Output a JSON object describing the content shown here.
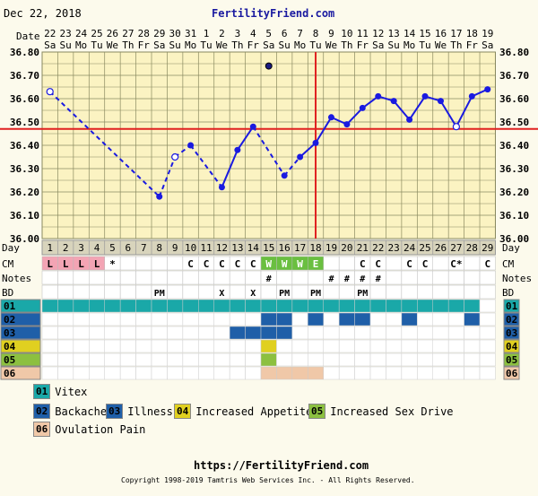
{
  "header": {
    "date": "Dec 22, 2018",
    "site": "FertilityFriend.com"
  },
  "footer": {
    "url": "https://FertilityFriend.com",
    "copyright": "Copyright 1998-2019 Tamtris Web Services Inc. - All Rights Reserved."
  },
  "row_labels": {
    "date": "Date",
    "day": "Day",
    "cm": "CM",
    "notes": "Notes",
    "bd": "BD"
  },
  "colors": {
    "temp": "#1a1ae0",
    "coverline": "#e02020",
    "grid": "#8a8a60",
    "plot_bg": "#fbf3c2"
  },
  "chart_data": {
    "type": "line",
    "dates": [
      "22",
      "23",
      "24",
      "25",
      "26",
      "27",
      "28",
      "29",
      "30",
      "31",
      "1",
      "2",
      "3",
      "4",
      "5",
      "6",
      "7",
      "8",
      "9",
      "10",
      "11",
      "12",
      "13",
      "14",
      "15",
      "16",
      "17",
      "18",
      "19"
    ],
    "weekdays": [
      "Sa",
      "Su",
      "Mo",
      "Tu",
      "We",
      "Th",
      "Fr",
      "Sa",
      "Su",
      "Mo",
      "Tu",
      "We",
      "Th",
      "Fr",
      "Sa",
      "Su",
      "Mo",
      "Tu",
      "We",
      "Th",
      "Fr",
      "Sa",
      "Su",
      "Mo",
      "Tu",
      "We",
      "Th",
      "Fr",
      "Sa"
    ],
    "days": [
      1,
      2,
      3,
      4,
      5,
      6,
      7,
      8,
      9,
      10,
      11,
      12,
      13,
      14,
      15,
      16,
      17,
      18,
      19,
      20,
      21,
      22,
      23,
      24,
      25,
      26,
      27,
      28,
      29
    ],
    "yticks": [
      "36.00",
      "36.10",
      "36.20",
      "36.30",
      "36.40",
      "36.50",
      "36.60",
      "36.70",
      "36.80"
    ],
    "ylim": [
      36.0,
      36.8
    ],
    "temps": [
      36.63,
      null,
      null,
      null,
      null,
      null,
      null,
      36.18,
      36.35,
      36.4,
      null,
      36.22,
      36.38,
      36.48,
      36.74,
      36.27,
      36.35,
      36.41,
      36.52,
      36.49,
      36.56,
      36.61,
      36.59,
      36.51,
      36.61,
      36.59,
      36.48,
      36.61,
      36.64
    ],
    "open_points": [
      1,
      9,
      27
    ],
    "discarded_points": [
      15
    ],
    "dashed_segments": [
      [
        1,
        8
      ],
      [
        8,
        9
      ],
      [
        9,
        10
      ],
      [
        15,
        16
      ],
      [
        16,
        17
      ]
    ],
    "coverline": 36.47,
    "ovulation_day": 18,
    "menstruation": [
      "L",
      "L",
      "L",
      "L",
      "*",
      "",
      "",
      "",
      "",
      "",
      "",
      "",
      "",
      "",
      "",
      "",
      "",
      "",
      "",
      "",
      "",
      "",
      "",
      "",
      "",
      "",
      "",
      "",
      ""
    ],
    "cm": [
      "",
      "",
      "",
      "",
      "",
      "",
      "",
      "",
      "",
      "C",
      "C",
      "C",
      "C",
      "C",
      "W",
      "W",
      "W",
      "E",
      "",
      "",
      "C",
      "C",
      "",
      "C",
      "C",
      "",
      "C*",
      "",
      "C"
    ],
    "notes": [
      "",
      "",
      "",
      "",
      "",
      "",
      "",
      "",
      "",
      "",
      "",
      "",
      "",
      "",
      "#",
      "",
      "",
      "",
      "#",
      "#",
      "#",
      "#",
      "",
      "",
      "",
      "",
      "",
      "",
      ""
    ],
    "bd": [
      "",
      "",
      "",
      "",
      "",
      "",
      "",
      "PM",
      "",
      "",
      "",
      "X",
      "",
      "X",
      "",
      "PM",
      "",
      "PM",
      "",
      "",
      "PM",
      "",
      "",
      "",
      "",
      "",
      "",
      "",
      ""
    ],
    "symptom_rows": [
      {
        "code": "01",
        "color": "#1aa8a8",
        "days": [
          1,
          2,
          3,
          4,
          5,
          6,
          7,
          8,
          9,
          10,
          11,
          12,
          13,
          14,
          15,
          16,
          17,
          18,
          19,
          20,
          21,
          22,
          23,
          24,
          25,
          26,
          27,
          28
        ]
      },
      {
        "code": "02",
        "color": "#1f5fa8",
        "days": [
          15,
          16,
          18,
          20,
          21,
          24,
          28
        ]
      },
      {
        "code": "03",
        "color": "#1f5fa8",
        "days": [
          13,
          14,
          15,
          16
        ]
      },
      {
        "code": "04",
        "color": "#e0d020",
        "days": [
          15
        ]
      },
      {
        "code": "05",
        "color": "#8cc040",
        "days": [
          15
        ]
      },
      {
        "code": "06",
        "color": "#f0c8a8",
        "days": [
          15,
          16,
          17,
          18
        ]
      }
    ]
  },
  "legend": [
    {
      "code": "01",
      "label": "Vitex",
      "color": "#1aa8a8",
      "text_color": "#000"
    },
    {
      "code": "02",
      "label": "Backache",
      "color": "#1f5fa8",
      "text_color": "#000"
    },
    {
      "code": "03",
      "label": "Illness",
      "color": "#1f5fa8",
      "text_color": "#000"
    },
    {
      "code": "04",
      "label": "Increased Appetite",
      "color": "#e0d020",
      "text_color": "#000"
    },
    {
      "code": "05",
      "label": "Increased Sex Drive",
      "color": "#8cc040",
      "text_color": "#000"
    },
    {
      "code": "06",
      "label": "Ovulation Pain",
      "color": "#f0c8a8",
      "text_color": "#000"
    }
  ]
}
